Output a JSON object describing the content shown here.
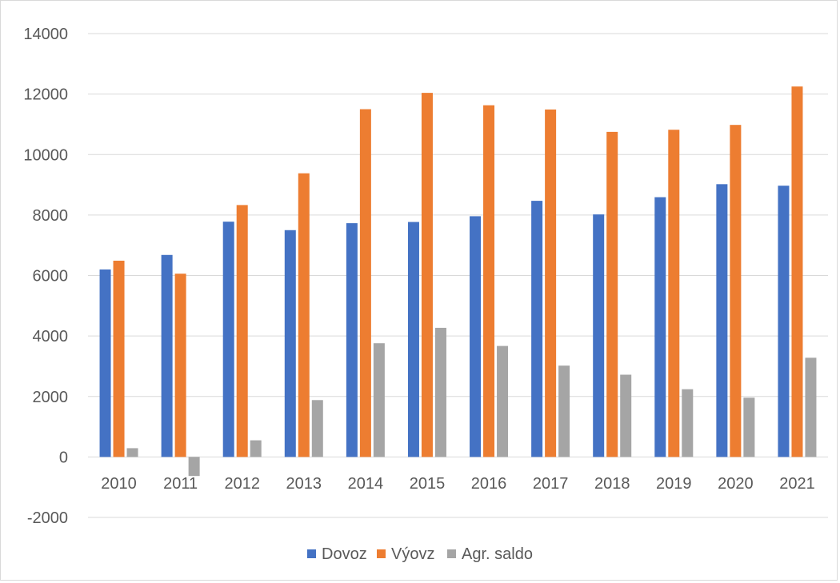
{
  "chart_data": {
    "type": "bar",
    "categories": [
      "2010",
      "2011",
      "2012",
      "2013",
      "2014",
      "2015",
      "2016",
      "2017",
      "2018",
      "2019",
      "2020",
      "2021"
    ],
    "series": [
      {
        "name": "Dovoz",
        "color": "#4472c4",
        "values": [
          6200,
          6680,
          7780,
          7500,
          7730,
          7770,
          7960,
          8470,
          8020,
          8590,
          9020,
          8970
        ]
      },
      {
        "name": "Výovz",
        "color": "#ed7d31",
        "values": [
          6490,
          6060,
          8330,
          9380,
          11500,
          12040,
          11630,
          11490,
          10750,
          10820,
          10980,
          12250
        ]
      },
      {
        "name": "Agr. saldo",
        "color": "#a5a5a5",
        "values": [
          290,
          -630,
          550,
          1880,
          3760,
          4270,
          3670,
          3020,
          2720,
          2240,
          1960,
          3280
        ]
      }
    ],
    "y_ticks": [
      "14000",
      "12000",
      "10000",
      "8000",
      "6000",
      "4000",
      "2000",
      "0",
      "-2000"
    ],
    "ylim": [
      -2000,
      14000
    ],
    "grid": true,
    "legend_position": "bottom"
  }
}
